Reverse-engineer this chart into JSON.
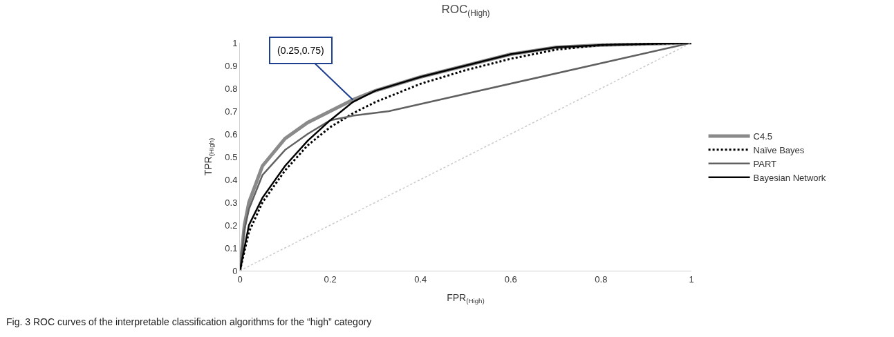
{
  "chart_data": {
    "type": "line",
    "title": "ROC$_{(High)}$",
    "xlabel": "FPR$_{(High)}$",
    "ylabel": "TPR$_{(High)}$",
    "series": [
      {
        "name": "C4.5",
        "color": "#8a8a8a",
        "line_style": "solid",
        "x": [
          0,
          0.01,
          0.02,
          0.05,
          0.1,
          0.15,
          0.2,
          0.25,
          0.3,
          0.4,
          0.5,
          0.6,
          0.7,
          0.8,
          1
        ],
        "values": [
          0,
          0.2,
          0.3,
          0.46,
          0.58,
          0.65,
          0.7,
          0.75,
          0.79,
          0.85,
          0.9,
          0.95,
          0.98,
          0.99,
          1
        ]
      },
      {
        "name": "Naïve Bayes",
        "color": "#000000",
        "line_style": "dotted",
        "x": [
          0,
          0.02,
          0.05,
          0.1,
          0.15,
          0.2,
          0.25,
          0.3,
          0.4,
          0.5,
          0.6,
          0.7,
          0.8,
          1
        ],
        "values": [
          0,
          0.17,
          0.3,
          0.44,
          0.55,
          0.63,
          0.69,
          0.74,
          0.82,
          0.88,
          0.93,
          0.97,
          0.99,
          1
        ]
      },
      {
        "name": "PART",
        "color": "#606060",
        "line_style": "solid",
        "x": [
          0,
          0.01,
          0.02,
          0.05,
          0.1,
          0.15,
          0.2,
          0.25,
          0.33,
          1
        ],
        "values": [
          0,
          0.18,
          0.27,
          0.42,
          0.53,
          0.6,
          0.66,
          0.68,
          0.7,
          1
        ]
      },
      {
        "name": "Bayesian Network",
        "color": "#000000",
        "line_style": "solid",
        "x": [
          0,
          0.02,
          0.05,
          0.1,
          0.15,
          0.2,
          0.25,
          0.3,
          0.4,
          0.5,
          0.6,
          0.7,
          0.8,
          1
        ],
        "values": [
          0,
          0.2,
          0.32,
          0.46,
          0.57,
          0.66,
          0.74,
          0.79,
          0.85,
          0.9,
          0.95,
          0.98,
          0.99,
          1
        ]
      },
      {
        "color": "#c8c8c8",
        "line_style": "dotted",
        "x": [
          0,
          1
        ],
        "values": [
          0,
          1
        ]
      }
    ],
    "xlim": [
      0,
      1
    ],
    "ylim": [
      0,
      1
    ],
    "xticks": [
      0,
      0.2,
      0.4,
      0.6,
      0.8,
      1
    ],
    "yticks": [
      0,
      0.1,
      0.2,
      0.3,
      0.4,
      0.5,
      0.6,
      0.7,
      0.8,
      0.9,
      1
    ],
    "legend": "right",
    "marker": "none",
    "annotations": [
      {
        "text": "(0.25,0.75)",
        "x": 0.25,
        "y": 0.75
      },
      "Fig. 3 ROC curves of the interpretable classification algorithms for the “high” category"
    ]
  }
}
